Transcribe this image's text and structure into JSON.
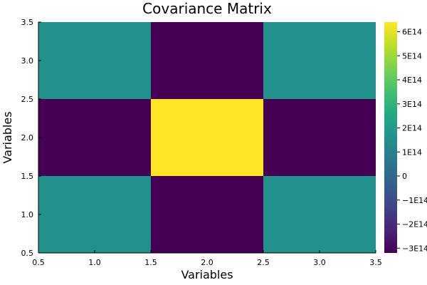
{
  "chart_data": {
    "type": "heatmap",
    "title": "Covariance Matrix",
    "xlabel": "Variables",
    "ylabel": "Variables",
    "xlim": [
      0.5,
      3.5
    ],
    "ylim": [
      0.5,
      3.5
    ],
    "xticks": [
      {
        "value": 0.5,
        "label": "0.5"
      },
      {
        "value": 1.0,
        "label": "1.0"
      },
      {
        "value": 1.5,
        "label": "1.5"
      },
      {
        "value": 2.0,
        "label": "2.0"
      },
      {
        "value": 2.5,
        "label": "2.5"
      },
      {
        "value": 3.0,
        "label": "3.0"
      },
      {
        "value": 3.5,
        "label": "3.5"
      }
    ],
    "yticks": [
      {
        "value": 0.5,
        "label": "0.5"
      },
      {
        "value": 1.0,
        "label": "1.0"
      },
      {
        "value": 1.5,
        "label": "1.5"
      },
      {
        "value": 2.0,
        "label": "2.0"
      },
      {
        "value": 2.5,
        "label": "2.5"
      },
      {
        "value": 3.0,
        "label": "3.0"
      },
      {
        "value": 3.5,
        "label": "3.5"
      }
    ],
    "x": [
      1,
      2,
      3
    ],
    "y": [
      1,
      2,
      3
    ],
    "z": [
      [
        160000000000000.0,
        -320000000000000.0,
        160000000000000.0
      ],
      [
        -320000000000000.0,
        640000000000000.0,
        -320000000000000.0
      ],
      [
        160000000000000.0,
        -320000000000000.0,
        160000000000000.0
      ]
    ],
    "colormap": "viridis",
    "color_range": [
      -320000000000000.0,
      640000000000000.0
    ],
    "colorbar_ticks": [
      {
        "value": -300000000000000.0,
        "label": "−3E14"
      },
      {
        "value": -200000000000000.0,
        "label": "−2E14"
      },
      {
        "value": -100000000000000.0,
        "label": "−1E14"
      },
      {
        "value": 0,
        "label": "0"
      },
      {
        "value": 100000000000000.0,
        "label": "1E14"
      },
      {
        "value": 200000000000000.0,
        "label": "2E14"
      },
      {
        "value": 300000000000000.0,
        "label": "3E14"
      },
      {
        "value": 400000000000000.0,
        "label": "4E14"
      },
      {
        "value": 500000000000000.0,
        "label": "5E14"
      },
      {
        "value": 600000000000000.0,
        "label": "6E14"
      }
    ],
    "grid": false
  }
}
